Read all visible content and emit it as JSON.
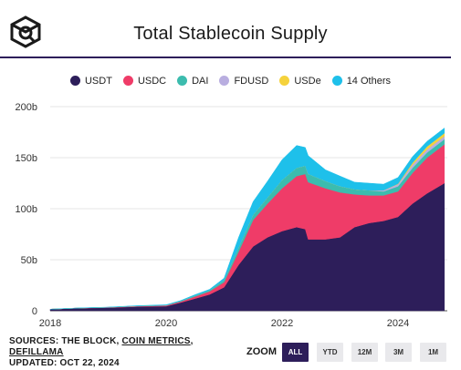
{
  "header": {
    "title": "Total Stablecoin Supply",
    "logo_icon": "the-block-cube-logo-icon"
  },
  "legend": [
    {
      "label": "USDT",
      "color": "#2d1e5a"
    },
    {
      "label": "USDC",
      "color": "#ef3c68"
    },
    {
      "label": "DAI",
      "color": "#3cbcae"
    },
    {
      "label": "FDUSD",
      "color": "#b9aee0"
    },
    {
      "label": "USDe",
      "color": "#f5d23c"
    },
    {
      "label": "14 Others",
      "color": "#1ec0ea"
    }
  ],
  "footer": {
    "sources_prefix": "SOURCES: THE BLOCK, ",
    "sources_link1": "COIN METRICS",
    "sources_sep": ",",
    "sources_link2": "DEFILLAMA",
    "updated": "UPDATED: OCT 22, 2024"
  },
  "zoom": {
    "label": "ZOOM",
    "buttons": [
      {
        "label": "ALL",
        "active": true
      },
      {
        "label": "YTD",
        "active": false
      },
      {
        "label": "12M",
        "active": false
      },
      {
        "label": "3M",
        "active": false
      },
      {
        "label": "1M",
        "active": false
      }
    ]
  },
  "chart_data": {
    "type": "area",
    "stacked": true,
    "title": "Total Stablecoin Supply",
    "xlabel": "",
    "ylabel": "",
    "x_ticks": [
      "2018",
      "2020",
      "2022",
      "2024"
    ],
    "y_ticks": [
      "0",
      "50b",
      "100b",
      "150b",
      "200b"
    ],
    "xlim": [
      2018.0,
      2024.85
    ],
    "ylim": [
      0,
      200
    ],
    "grid": "horizontal",
    "legend_position": "top",
    "x": [
      2018.0,
      2018.5,
      2019.0,
      2019.5,
      2020.0,
      2020.25,
      2020.5,
      2020.75,
      2021.0,
      2021.25,
      2021.5,
      2021.75,
      2022.0,
      2022.25,
      2022.4,
      2022.45,
      2022.75,
      2023.0,
      2023.25,
      2023.5,
      2023.75,
      2024.0,
      2024.25,
      2024.5,
      2024.8
    ],
    "series": [
      {
        "name": "USDT",
        "values": [
          1.5,
          2.5,
          3,
          4,
          4.5,
          8,
          12,
          16,
          23,
          45,
          63,
          72,
          78,
          82,
          80,
          70,
          70,
          72,
          82,
          86,
          88,
          92,
          105,
          115,
          125
        ]
      },
      {
        "name": "USDC",
        "values": [
          0,
          0.2,
          0.3,
          0.5,
          0.7,
          1,
          2,
          3,
          5,
          13,
          26,
          33,
          42,
          50,
          54,
          56,
          50,
          44,
          32,
          27,
          25,
          25,
          30,
          35,
          38
        ]
      },
      {
        "name": "DAI",
        "values": [
          0,
          0,
          0.1,
          0.2,
          0.2,
          0.5,
          0.8,
          1,
          2,
          4,
          5,
          6,
          8,
          8,
          8,
          8,
          7,
          6,
          5,
          5,
          4,
          5,
          5,
          5,
          5
        ]
      },
      {
        "name": "FDUSD",
        "values": [
          0,
          0,
          0,
          0,
          0,
          0,
          0,
          0,
          0,
          0,
          0,
          0,
          0,
          0,
          0,
          0,
          0,
          0,
          0,
          0,
          1,
          2,
          3,
          3,
          3
        ]
      },
      {
        "name": "USDe",
        "values": [
          0,
          0,
          0,
          0,
          0,
          0,
          0,
          0,
          0,
          0,
          0,
          0,
          0,
          0,
          0,
          0,
          0,
          0,
          0,
          0,
          0,
          0.5,
          2,
          3,
          3
        ]
      },
      {
        "name": "14 Others",
        "values": [
          0,
          0.1,
          0.2,
          0.3,
          0.5,
          0.5,
          1,
          1,
          2,
          10,
          13,
          16,
          20,
          22,
          18,
          18,
          11,
          10,
          7,
          7,
          6,
          6,
          6,
          5,
          5
        ]
      }
    ]
  }
}
